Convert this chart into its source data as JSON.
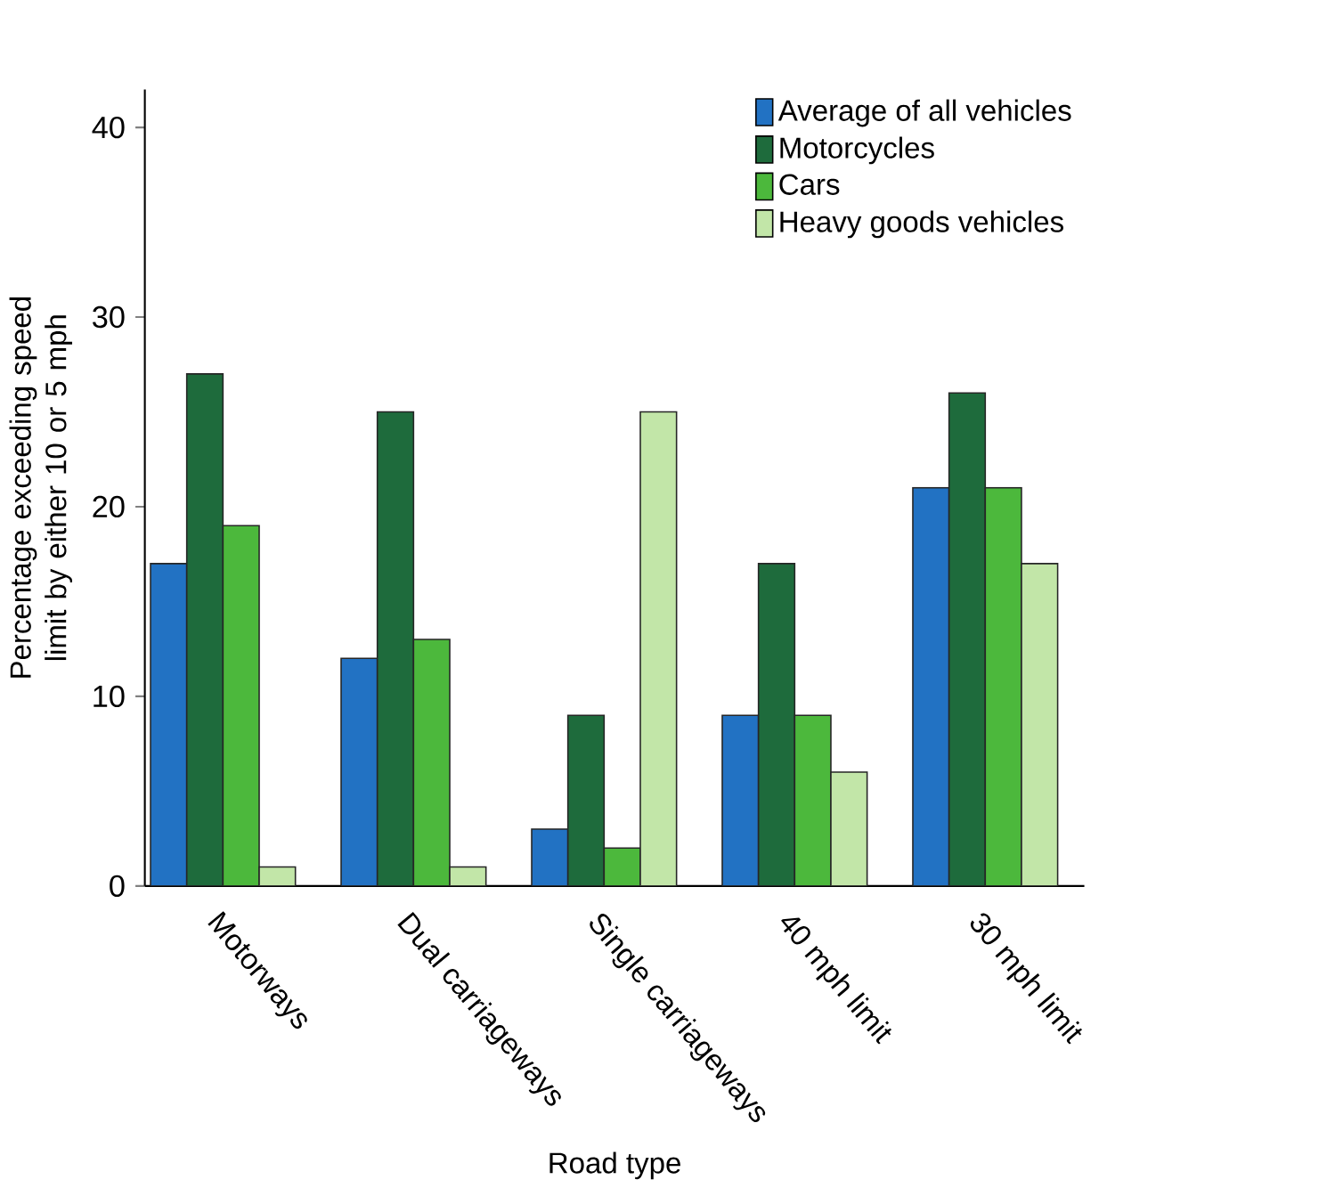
{
  "chart_data": {
    "type": "bar",
    "xlabel": "Road type",
    "ylabel": "Percentage exceeding speed limit by either 10 or 5 mph",
    "categories": [
      "Motorways",
      "Dual carriageways",
      "Single carriageways",
      "40 mph limit",
      "30 mph limit"
    ],
    "series": [
      {
        "name": "Average of all vehicles",
        "color": "#2272c3",
        "values": [
          17,
          12,
          3,
          9,
          21
        ]
      },
      {
        "name": "Motorcycles",
        "color": "#1e6b3c",
        "values": [
          27,
          25,
          9,
          17,
          26
        ]
      },
      {
        "name": "Cars",
        "color": "#4cb83c",
        "values": [
          19,
          13,
          2,
          9,
          21
        ]
      },
      {
        "name": "Heavy goods vehicles",
        "color": "#c2e6a8",
        "values": [
          1,
          1,
          25,
          6,
          17
        ]
      }
    ],
    "ylim": [
      0,
      42
    ],
    "yticks": [
      0,
      10,
      20,
      30,
      40
    ],
    "legend": "top right"
  }
}
